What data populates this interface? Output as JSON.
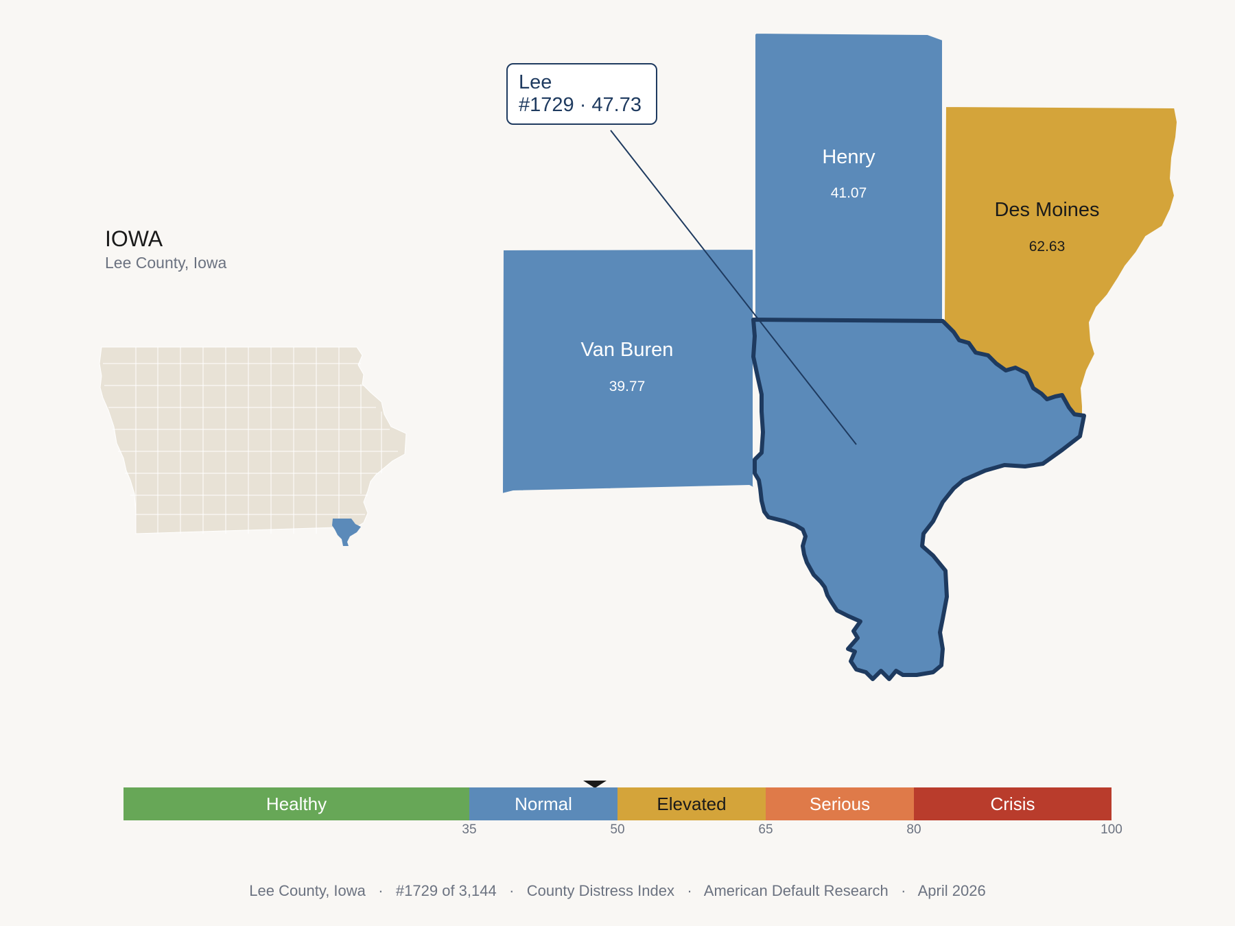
{
  "state_title": "IOWA",
  "state_subtitle": "Lee County, Iowa",
  "tooltip": {
    "name": "Lee",
    "detail": "#1729 · 47.73"
  },
  "counties": {
    "henry": {
      "name": "Henry",
      "value": "41.07",
      "color": "#5b8ab9"
    },
    "des_moines": {
      "name": "Des Moines",
      "value": "62.63",
      "color": "#d4a43a"
    },
    "van_buren": {
      "name": "Van Buren",
      "value": "39.77",
      "color": "#5b8ab9"
    },
    "lee": {
      "name": "Lee",
      "value": "47.73",
      "color": "#5b8ab9",
      "outline": "#1e3a5f"
    }
  },
  "locator": {
    "fill": "#e8e2d6",
    "highlight": "#5b8ab9"
  },
  "scale": {
    "min": 0,
    "max": 100,
    "marker_value": 47.73,
    "segments": [
      {
        "label": "Healthy",
        "from": 0,
        "to": 35,
        "color": "#67a757",
        "text_color": "#ffffff"
      },
      {
        "label": "Normal",
        "from": 35,
        "to": 50,
        "color": "#5b8ab9",
        "text_color": "#ffffff"
      },
      {
        "label": "Elevated",
        "from": 50,
        "to": 65,
        "color": "#d4a43a",
        "text_color": "#1a1a1a"
      },
      {
        "label": "Serious",
        "from": 65,
        "to": 80,
        "color": "#df7a49",
        "text_color": "#ffffff"
      },
      {
        "label": "Crisis",
        "from": 80,
        "to": 100,
        "color": "#b93c2c",
        "text_color": "#ffffff"
      }
    ],
    "ticks": [
      "35",
      "50",
      "65",
      "80",
      "100"
    ]
  },
  "footer": {
    "county": "Lee County, Iowa",
    "rank": "#1729 of 3,144",
    "index": "County Distress Index",
    "source": "American Default Research",
    "date": "April 2026"
  }
}
